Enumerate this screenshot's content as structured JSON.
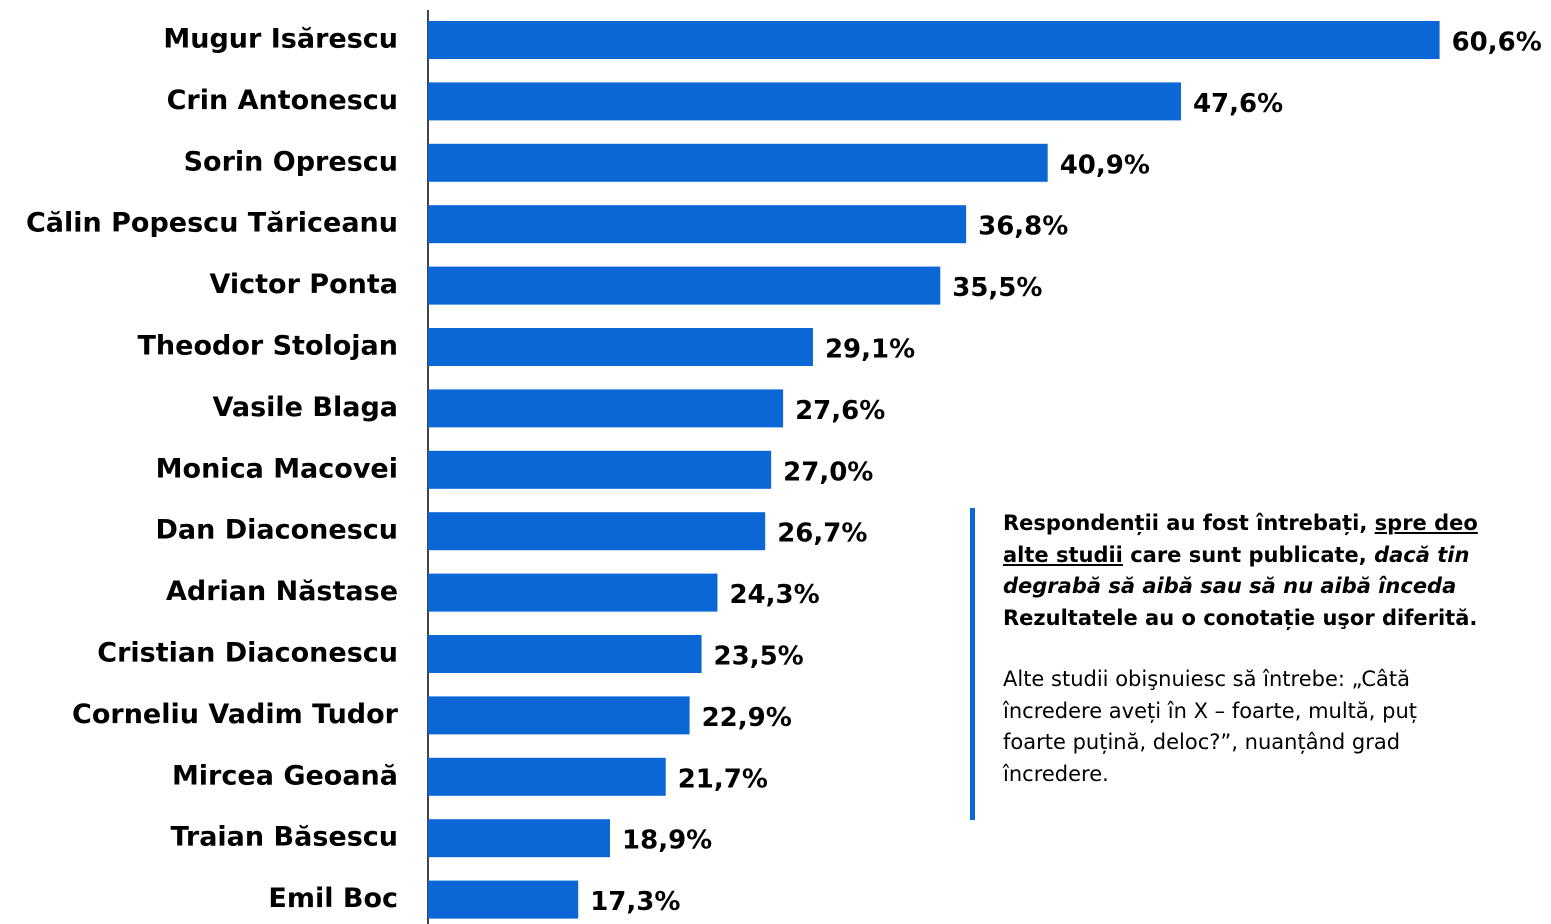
{
  "chart_data": {
    "type": "barh",
    "categories": [
      "Mugur Isărescu",
      "Crin Antonescu",
      "Sorin Oprescu",
      "Călin Popescu Tăriceanu",
      "Victor Ponta",
      "Theodor Stolojan",
      "Vasile Blaga",
      "Monica Macovei",
      "Dan Diaconescu",
      "Adrian Năstase",
      "Cristian Diaconescu",
      "Corneliu Vadim Tudor",
      "Mircea Geoană",
      "Traian Băsescu",
      "Emil Boc"
    ],
    "values": [
      60.6,
      47.6,
      40.9,
      36.8,
      35.5,
      29.1,
      27.6,
      27.0,
      26.7,
      24.3,
      23.5,
      22.9,
      21.7,
      18.9,
      17.3
    ],
    "value_labels": [
      "60,6%",
      "47,6%",
      "40,9%",
      "36,8%",
      "35,5%",
      "29,1%",
      "27,6%",
      "27,0%",
      "26,7%",
      "24,3%",
      "23,5%",
      "22,9%",
      "21,7%",
      "18,9%",
      "17,3%"
    ],
    "color": "#0b66d6",
    "xlim": [
      9.75,
      66.2
    ],
    "annotations": [
      "Respondenții au fost întrebați, ",
      "spre deo",
      "alte studii",
      " care sunt publicate, ",
      "dacă tin",
      "degrabă să aibă sau să nu aibă înceda",
      "Rezultatele au o conotație uşor diferită.",
      "Alte studii obişnuiesc să întrebe: „Câtă",
      "încredere aveți în X – foarte, multă, puț",
      "foarte puțină, deloc?”, nuanțând grad",
      "încredere."
    ]
  }
}
